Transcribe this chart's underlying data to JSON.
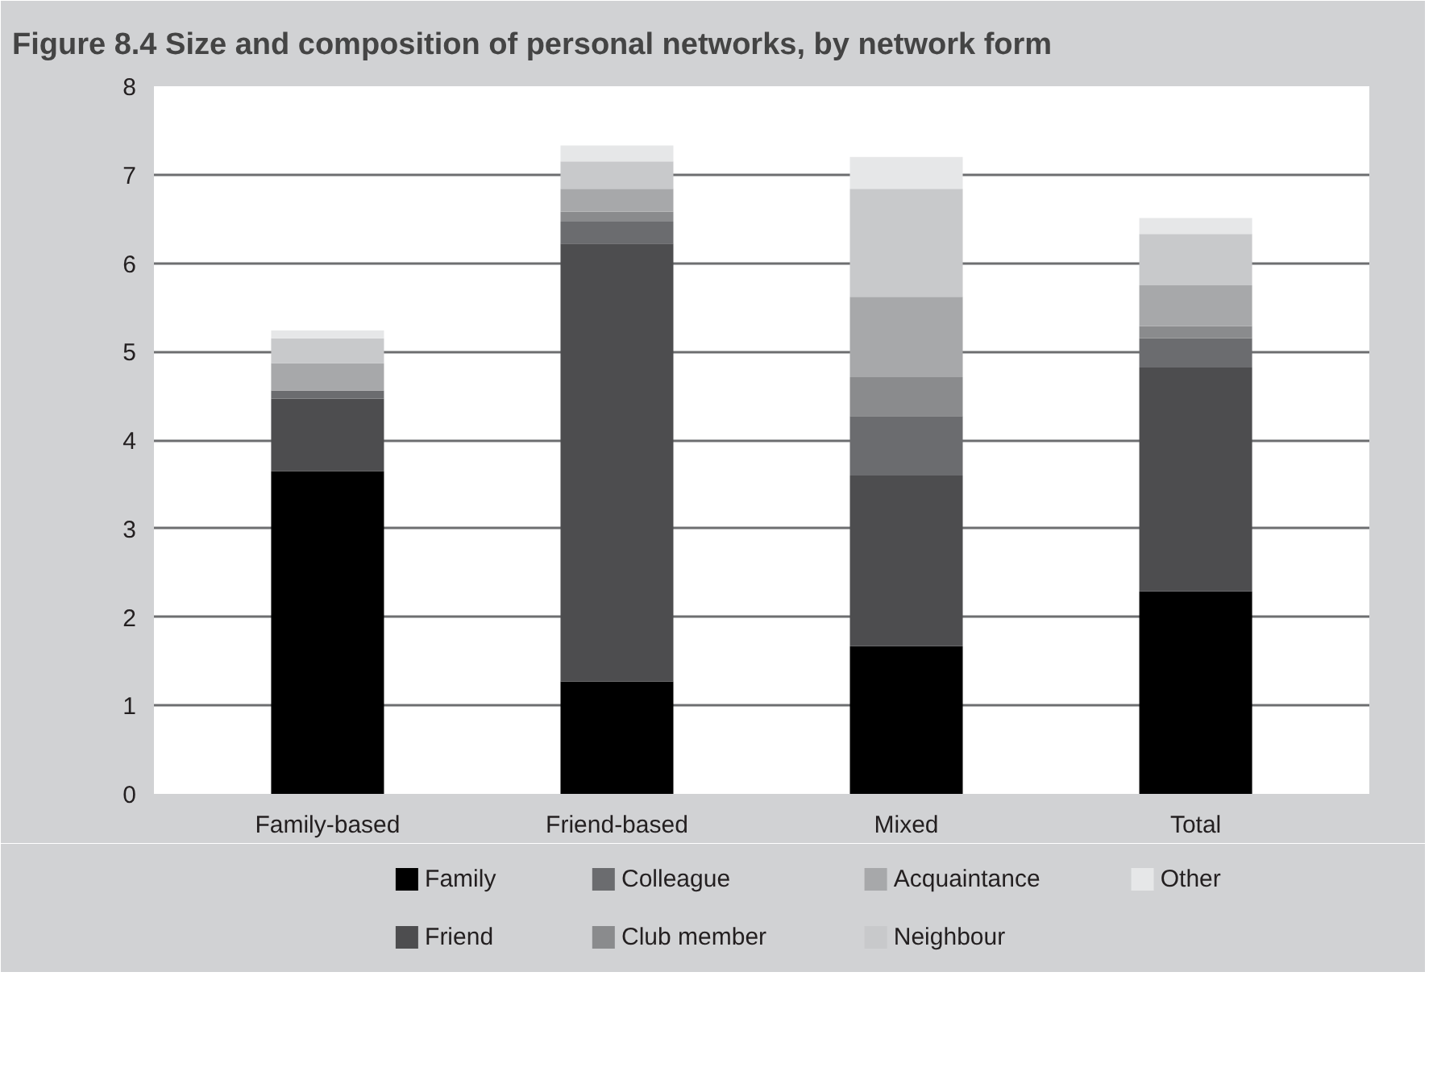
{
  "chart_data": {
    "type": "bar",
    "stacked": true,
    "title": "Figure 8.4 Size and composition of personal networks, by network form",
    "categories": [
      "Family-based",
      "Friend-based",
      "Mixed",
      "Total"
    ],
    "series": [
      {
        "name": "Family",
        "color": "#000000",
        "values": [
          3.65,
          1.27,
          1.67,
          2.29
        ]
      },
      {
        "name": "Friend",
        "color": "#4d4d4f",
        "values": [
          0.82,
          4.95,
          1.93,
          2.53
        ]
      },
      {
        "name": "Colleague",
        "color": "#6b6c6f",
        "values": [
          0.09,
          0.25,
          0.67,
          0.33
        ]
      },
      {
        "name": "Club member",
        "color": "#8a8b8d",
        "values": [
          0,
          0.11,
          0.44,
          0.14
        ]
      },
      {
        "name": "Acquaintance",
        "color": "#a7a8aa",
        "values": [
          0.31,
          0.26,
          0.91,
          0.46
        ]
      },
      {
        "name": "Neighbour",
        "color": "#c8c9cb",
        "values": [
          0.28,
          0.31,
          1.22,
          0.58
        ]
      },
      {
        "name": "Other",
        "color": "#e6e7e8",
        "values": [
          0.09,
          0.18,
          0.36,
          0.18
        ]
      }
    ],
    "ylim": [
      0,
      8
    ],
    "yticks": [
      0,
      1,
      2,
      3,
      4,
      5,
      6,
      7,
      8
    ],
    "grid": "y",
    "legend": "bottom"
  }
}
